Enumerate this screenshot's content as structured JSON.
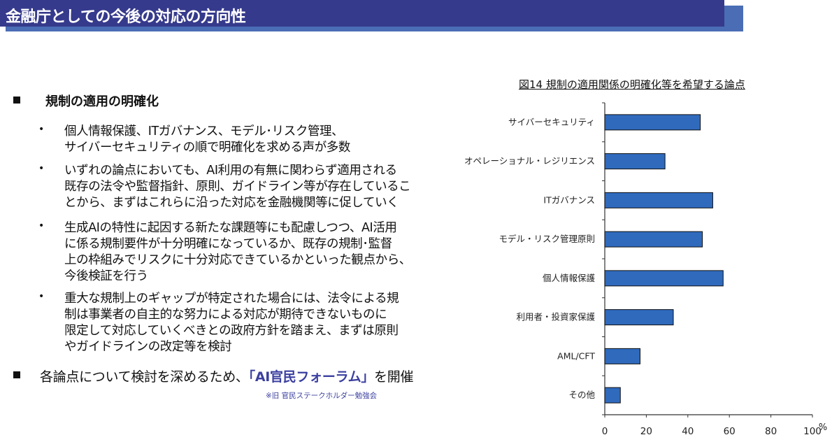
{
  "header": {
    "title": "金融庁としての今後の対応の方向性"
  },
  "left": {
    "heading": "規制の適用の明確化",
    "bullet_marker": "•",
    "bullets": [
      {
        "lines": [
          "個人情報保護、ITガバナンス、モデル･リスク管理、",
          "サイバーセキュリティの順で明確化を求める声が多数"
        ]
      },
      {
        "lines": [
          "いずれの論点においても、AI利用の有無に関わらず適用される",
          "既存の法令や監督指針、原則、ガイドライン等が存在しているこ",
          "とから、まずはこれらに沿った対応を金融機関等に促していく"
        ]
      },
      {
        "lines": [
          "生成AIの特性に起因する新たな課題等にも配慮しつつ、AI活用",
          "に係る規制要件が十分明確になっているか、既存の規制･監督",
          "上の枠組みでリスクに十分対応できているかといった観点から、",
          "今後検証を行う"
        ]
      },
      {
        "lines": [
          "重大な規制上のギャップが特定された場合には、法令による規",
          "制は事業者の自主的な努力による対応が期待できないものに",
          "限定して対応していくべきとの政府方針を踏まえ、まずは原則",
          "やガイドラインの改定等を検討"
        ]
      }
    ],
    "last": {
      "before": "各論点について検討を深めるため、",
      "highlight": "「AI官民フォーラム」",
      "after": "を開催"
    },
    "note": "※旧 官民ステークホルダー勉強会"
  },
  "colors": {
    "header": "#363a8c",
    "header_shadow": "#4a6db5",
    "bar": "#2f6abd",
    "highlight": "#3c40a0"
  },
  "chart_data": {
    "type": "bar",
    "orientation": "horizontal",
    "title": "図14  規制の適用関係の明確化等を希望する論点",
    "categories": [
      "サイバーセキュリティ",
      "オペレーショナル・レジリエンス",
      "ITガバナンス",
      "モデル・リスク管理原則",
      "個人情報保護",
      "利用者・投資家保護",
      "AML/CFT",
      "その他"
    ],
    "values": [
      46,
      29,
      52,
      47,
      57,
      33,
      17,
      7.5
    ],
    "xlim": [
      0,
      100
    ],
    "xticks": [
      "0",
      "20",
      "40",
      "60",
      "80",
      "100"
    ],
    "xunit": "%",
    "grid": false
  }
}
